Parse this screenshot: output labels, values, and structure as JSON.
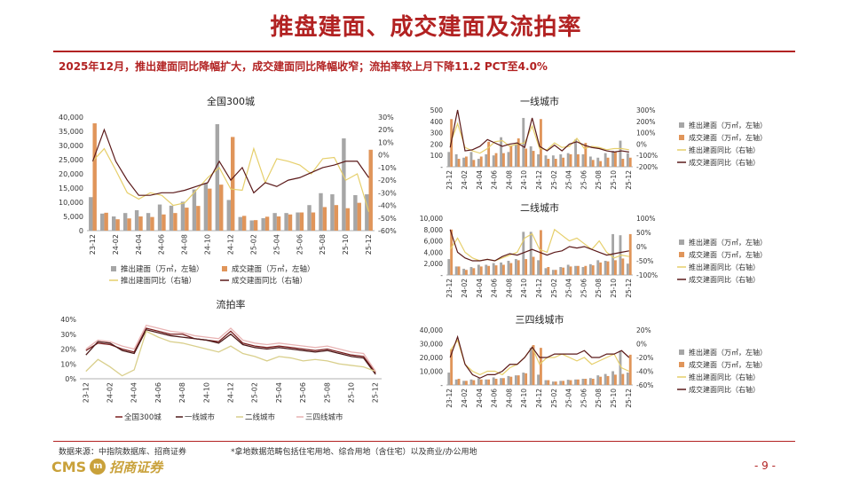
{
  "page": {
    "title": "推盘建面、成交建面及流拍率",
    "subtitle": "2025年12月，推出建面同比降幅扩大，成交建面同比降幅收窄；流拍率较上月下降11.2 PCT至4.0%",
    "source": "数据来源：中指院数据库、招商证券",
    "footnote": "*拿地数据范畴包括住宅用地、综合用地（含住宅）以及商业/办公用地",
    "page_number": "- 9 -",
    "logo_cms": "CMS",
    "logo_cn": "招商证券"
  },
  "colors": {
    "accent": "#b22222",
    "bar_pushed": "#a6a6a6",
    "bar_sold": "#e0955a",
    "line_pushed_yoy": "#e6cf6b",
    "line_sold_yoy": "#5b1a1a",
    "rate_all": "#7a1f1f",
    "rate_t1": "#4d1a1a",
    "rate_t2": "#d9cf8c",
    "rate_t34": "#e8b3b3"
  },
  "x_tick_labels": [
    "23-12",
    "24-02",
    "24-04",
    "24-06",
    "24-08",
    "24-10",
    "24-12",
    "25-02",
    "25-04",
    "25-06",
    "25-08",
    "25-10",
    "25-12"
  ],
  "chart_data": [
    {
      "type": "bar",
      "title": "全国300城",
      "x": [
        "23-12",
        "24-01",
        "24-02",
        "24-03",
        "24-04",
        "24-05",
        "24-06",
        "24-07",
        "24-08",
        "24-09",
        "24-10",
        "24-11",
        "24-12",
        "25-01",
        "25-02",
        "25-03",
        "25-04",
        "25-05",
        "25-06",
        "25-07",
        "25-08",
        "25-09",
        "25-10",
        "25-11",
        "25-12"
      ],
      "y_left_ticks": [
        "0",
        "5,000",
        "10,000",
        "15,000",
        "20,000",
        "25,000",
        "30,000",
        "35,000",
        "40,000"
      ],
      "y_right_ticks": [
        "-60%",
        "-50%",
        "-40%",
        "-30%",
        "-20%",
        "-10%",
        "0%",
        "10%",
        "20%",
        "30%"
      ],
      "ylim_left": [
        0,
        40000
      ],
      "ylim_right": [
        -60,
        30
      ],
      "legend": [
        "推出建面（万㎡，左轴）",
        "成交建面（万㎡，左轴）",
        "推出建面同比（右轴）",
        "成交建面同比（右轴）"
      ],
      "series": [
        {
          "name": "推出建面（万㎡，左轴）",
          "axis": "left",
          "kind": "bar",
          "values": [
            11800,
            6000,
            5000,
            6200,
            7200,
            6200,
            9200,
            8800,
            10200,
            14500,
            16800,
            37500,
            10800,
            4800,
            3600,
            4400,
            6200,
            6200,
            6400,
            9000,
            13200,
            12800,
            32500,
            12500,
            12800
          ]
        },
        {
          "name": "成交建面（万㎡，左轴）",
          "axis": "left",
          "kind": "bar",
          "values": [
            37800,
            6300,
            4000,
            4300,
            5000,
            4800,
            5700,
            6200,
            8100,
            8700,
            14800,
            16200,
            33000,
            5200,
            3700,
            4900,
            5000,
            5700,
            6400,
            6400,
            8300,
            9000,
            7900,
            9800,
            28500
          ]
        },
        {
          "name": "推出建面同比（右轴）",
          "axis": "right",
          "kind": "line",
          "values": [
            -5,
            5,
            -12,
            -30,
            -35,
            -30,
            -32,
            -40,
            -38,
            -28,
            -18,
            -10,
            -27,
            -28,
            5,
            -22,
            -3,
            -5,
            -8,
            -15,
            -3,
            -2,
            -20,
            -15,
            -45
          ]
        },
        {
          "name": "成交建面同比（右轴）",
          "axis": "right",
          "kind": "line",
          "values": [
            -5,
            20,
            -5,
            -20,
            -32,
            -32,
            -30,
            -30,
            -28,
            -25,
            -22,
            -5,
            -20,
            -10,
            -30,
            -22,
            -25,
            -20,
            -18,
            -14,
            -10,
            -8,
            -5,
            -5,
            -18
          ]
        }
      ]
    },
    {
      "type": "bar",
      "title": "一线城市",
      "x": [
        "23-12",
        "24-01",
        "24-02",
        "24-03",
        "24-04",
        "24-05",
        "24-06",
        "24-07",
        "24-08",
        "24-09",
        "24-10",
        "24-11",
        "24-12",
        "25-01",
        "25-02",
        "25-03",
        "25-04",
        "25-05",
        "25-06",
        "25-07",
        "25-08",
        "25-09",
        "25-10",
        "25-11",
        "25-12"
      ],
      "y_left_ticks": [
        "-",
        "100",
        "200",
        "300",
        "400",
        "500"
      ],
      "y_right_ticks": [
        "-200%",
        "-100%",
        "0%",
        "100%",
        "200%",
        "300%"
      ],
      "ylim_left": [
        0,
        500
      ],
      "ylim_right": [
        -200,
        300
      ],
      "legend": [
        "推出建面（万㎡，左轴）",
        "成交建面（万㎡，左轴）",
        "推出建面同比（右轴）",
        "成交建面同比（右轴）"
      ],
      "series": [
        {
          "name": "推出建面（万㎡，左轴）",
          "axis": "left",
          "kind": "bar",
          "values": [
            130,
            110,
            80,
            130,
            70,
            110,
            100,
            260,
            130,
            200,
            430,
            180,
            110,
            100,
            100,
            110,
            120,
            240,
            110,
            90,
            80,
            120,
            140,
            230,
            120
          ]
        },
        {
          "name": "成交建面（万㎡，左轴）",
          "axis": "left",
          "kind": "bar",
          "values": [
            420,
            70,
            90,
            60,
            90,
            220,
            120,
            120,
            190,
            250,
            160,
            140,
            420,
            70,
            70,
            80,
            110,
            110,
            210,
            60,
            50,
            80,
            130,
            70,
            80
          ]
        },
        {
          "name": "推出建面同比（右轴）",
          "axis": "right",
          "kind": "line",
          "values": [
            0,
            180,
            -30,
            -60,
            -80,
            -40,
            20,
            30,
            -20,
            0,
            10,
            160,
            -40,
            -50,
            10,
            -30,
            -20,
            50,
            -40,
            -20,
            -30,
            -50,
            -40,
            -40,
            -50
          ]
        },
        {
          "name": "成交建面同比（右轴）",
          "axis": "right",
          "kind": "line",
          "values": [
            -30,
            300,
            -60,
            -50,
            -20,
            40,
            10,
            -20,
            0,
            10,
            -30,
            230,
            -20,
            -60,
            -10,
            -60,
            0,
            20,
            -10,
            -30,
            -40,
            -60,
            -70,
            -60,
            -70
          ]
        }
      ]
    },
    {
      "type": "bar",
      "title": "二线城市",
      "x": [
        "23-12",
        "24-01",
        "24-02",
        "24-03",
        "24-04",
        "24-05",
        "24-06",
        "24-07",
        "24-08",
        "24-09",
        "24-10",
        "24-11",
        "24-12",
        "25-01",
        "25-02",
        "25-03",
        "25-04",
        "25-05",
        "25-06",
        "25-07",
        "25-08",
        "25-09",
        "25-10",
        "25-11",
        "25-12"
      ],
      "y_left_ticks": [
        "-",
        "2,000",
        "4,000",
        "6,000",
        "8,000",
        "10,000"
      ],
      "y_right_ticks": [
        "-100%",
        "-50%",
        "0%",
        "50%",
        "100%"
      ],
      "ylim_left": [
        0,
        10000
      ],
      "ylim_right": [
        -100,
        100
      ],
      "legend": [
        "推出建面（万㎡，左轴）",
        "成交建面（万㎡，左轴）",
        "推出建面同比（右轴）",
        "成交建面同比（右轴）"
      ],
      "series": [
        {
          "name": "推出建面（万㎡，左轴）",
          "axis": "left",
          "kind": "bar",
          "values": [
            2800,
            1500,
            1100,
            1400,
            1800,
            1800,
            2100,
            2200,
            2500,
            2800,
            7600,
            7600,
            2600,
            1200,
            900,
            1400,
            1800,
            1600,
            1400,
            1900,
            2600,
            2500,
            7200,
            7000,
            2000
          ]
        },
        {
          "name": "成交建面（万㎡，左轴）",
          "axis": "left",
          "kind": "bar",
          "values": [
            8000,
            1500,
            900,
            1200,
            1500,
            1600,
            1700,
            1800,
            2100,
            2600,
            2800,
            3200,
            7900,
            1400,
            900,
            1300,
            1500,
            1600,
            1600,
            1700,
            2200,
            2400,
            2600,
            2900,
            7200
          ]
        },
        {
          "name": "推出建面同比（右轴）",
          "axis": "right",
          "kind": "line",
          "values": [
            -10,
            30,
            -20,
            -40,
            -50,
            -45,
            -50,
            -40,
            -30,
            -20,
            30,
            45,
            -10,
            -20,
            60,
            40,
            20,
            30,
            10,
            -10,
            20,
            -20,
            -40,
            -30,
            -35
          ]
        },
        {
          "name": "成交建面同比（右轴）",
          "axis": "right",
          "kind": "line",
          "values": [
            60,
            -20,
            -40,
            -50,
            -50,
            -45,
            -50,
            -35,
            -25,
            -30,
            -20,
            -10,
            -20,
            -30,
            -20,
            -15,
            0,
            -5,
            0,
            -10,
            -20,
            -30,
            -25,
            -20,
            -15
          ]
        }
      ]
    },
    {
      "type": "bar",
      "title": "三四线城市",
      "x": [
        "23-12",
        "24-01",
        "24-02",
        "24-03",
        "24-04",
        "24-05",
        "24-06",
        "24-07",
        "24-08",
        "24-09",
        "24-10",
        "24-11",
        "24-12",
        "25-01",
        "25-02",
        "25-03",
        "25-04",
        "25-05",
        "25-06",
        "25-07",
        "25-08",
        "25-09",
        "25-10",
        "25-11",
        "25-12"
      ],
      "y_left_ticks": [
        "-",
        "10,000",
        "20,000",
        "30,000",
        "40,000"
      ],
      "y_right_ticks": [
        "-60%",
        "-40%",
        "-20%",
        "0%",
        "20%"
      ],
      "ylim_left": [
        0,
        40000
      ],
      "ylim_right": [
        -60,
        20
      ],
      "legend": [
        "推出建面（万㎡，左轴）",
        "成交建面（万㎡，左轴）",
        "推出建面同比（右轴）",
        "成交建面同比（右轴）"
      ],
      "series": [
        {
          "name": "推出建面（万㎡，左轴）",
          "axis": "left",
          "kind": "bar",
          "values": [
            9000,
            4000,
            3000,
            4000,
            5000,
            4000,
            5500,
            5000,
            6500,
            7000,
            9000,
            27000,
            7500,
            3500,
            2500,
            3000,
            3800,
            4000,
            4500,
            5000,
            7000,
            8000,
            10000,
            25000,
            9000
          ]
        },
        {
          "name": "成交建面（万㎡，左轴）",
          "axis": "left",
          "kind": "bar",
          "values": [
            26000,
            4500,
            3000,
            3500,
            4000,
            4000,
            4500,
            5000,
            6000,
            7000,
            8500,
            29000,
            27000,
            3500,
            2500,
            3000,
            3500,
            4000,
            4500,
            4500,
            6000,
            6500,
            7500,
            8000,
            22000
          ]
        },
        {
          "name": "推出建面同比（右轴）",
          "axis": "right",
          "kind": "line",
          "values": [
            -10,
            5,
            -30,
            -40,
            -45,
            -40,
            -40,
            -45,
            -35,
            -30,
            -20,
            -5,
            -30,
            -20,
            -20,
            -15,
            -20,
            -25,
            -20,
            -30,
            -25,
            -20,
            -15,
            -35,
            -40
          ]
        },
        {
          "name": "成交建面同比（右轴）",
          "axis": "right",
          "kind": "line",
          "values": [
            -20,
            10,
            -30,
            -45,
            -50,
            -45,
            -45,
            -40,
            -30,
            -30,
            -20,
            -5,
            -20,
            -20,
            -15,
            -15,
            -15,
            -15,
            -10,
            -20,
            -20,
            -15,
            -15,
            -10,
            -20
          ]
        }
      ]
    },
    {
      "type": "line",
      "title": "流拍率",
      "x": [
        "23-12",
        "24-01",
        "24-02",
        "24-03",
        "24-04",
        "24-05",
        "24-06",
        "24-07",
        "24-08",
        "24-09",
        "24-10",
        "24-11",
        "24-12",
        "25-01",
        "25-02",
        "25-03",
        "25-04",
        "25-05",
        "25-06",
        "25-07",
        "25-08",
        "25-09",
        "25-10",
        "25-11",
        "25-12"
      ],
      "y_left_ticks": [
        "0%",
        "10%",
        "20%",
        "30%",
        "40%"
      ],
      "ylim": [
        0,
        40
      ],
      "legend": [
        "全国300城",
        "一线城市",
        "二线城市",
        "三四线城市"
      ],
      "series": [
        {
          "name": "全国300城",
          "values": [
            19,
            24,
            23,
            20,
            18,
            34,
            32,
            30,
            30,
            27,
            26,
            25,
            32,
            24,
            22,
            21,
            22,
            21,
            20,
            19,
            20,
            18,
            16,
            15,
            4
          ]
        },
        {
          "name": "一线城市",
          "values": [
            16,
            25,
            24,
            19,
            17,
            33,
            31,
            29,
            28,
            27,
            26,
            24,
            30,
            23,
            21,
            20,
            21,
            20,
            19,
            18,
            19,
            17,
            15,
            14,
            3
          ]
        },
        {
          "name": "二线城市",
          "values": [
            5,
            13,
            8,
            2,
            6,
            32,
            28,
            25,
            24,
            22,
            20,
            18,
            22,
            17,
            15,
            12,
            15,
            14,
            12,
            13,
            12,
            10,
            9,
            8,
            5
          ]
        },
        {
          "name": "三四线城市",
          "values": [
            20,
            26,
            25,
            22,
            20,
            36,
            34,
            32,
            31,
            29,
            28,
            27,
            34,
            26,
            24,
            23,
            24,
            23,
            22,
            21,
            22,
            20,
            18,
            17,
            5
          ]
        }
      ]
    }
  ]
}
